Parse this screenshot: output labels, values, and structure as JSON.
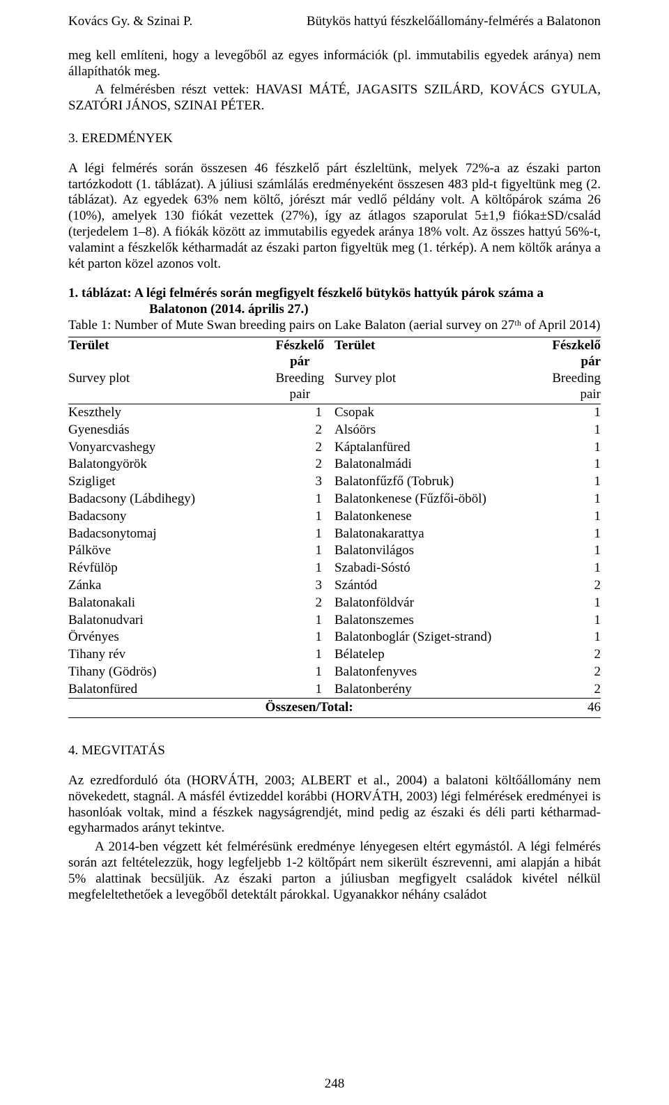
{
  "header": {
    "left": "Kovács Gy. & Szinai P.",
    "right": "Bütykös hattyú fészkelőállomány-felmérés a Balatonon"
  },
  "para1": "meg kell említeni, hogy a levegőből az egyes információk (pl. immutabilis egyedek aránya) nem állapíthatók meg.",
  "para2": "A felmérésben részt vettek: HAVASI MÁTÉ, JAGASITS SZILÁRD, KOVÁCS GYULA, SZATÓRI JÁNOS, SZINAI PÉTER.",
  "section3": "3. EREDMÉNYEK",
  "para3": "A légi felmérés során összesen 46 fészkelő párt észleltünk, melyek 72%-a az északi parton tartózkodott (1. táblázat). A júliusi számlálás eredményeként összesen 483 pld-t figyeltünk meg (2. táblázat). Az egyedek 63% nem költő, jórészt már vedlő példány volt. A költőpárok száma 26 (10%), amelyek 130 fiókát vezettek (27%), így az átlagos szaporulat 5±1,9 fióka±SD/család (terjedelem 1–8). A fiókák között az immutabilis egyedek aránya 18% volt. Az összes hattyú 56%-t, valamint a fészkelők kétharmadát az északi parton figyeltük meg (1. térkép). A nem költők aránya a két parton közel azonos volt.",
  "table1": {
    "caption_bold_a": "1. táblázat: A légi felmérés során megfigyelt fészkelő bütykös hattyúk párok száma a",
    "caption_bold_b": "Balatonon (2014. április 27.)",
    "caption_en": "Table 1: Number of Mute Swan breeding pairs on Lake Balaton (aerial survey on 27ᵗʰ of April 2014)",
    "head_left": "Terület",
    "head_pair": "Fészkelő pár",
    "head_sub_left": "Survey plot",
    "head_sub_pair": "Breeding pair",
    "rows_left": [
      [
        "Keszthely",
        "1"
      ],
      [
        "Gyenesdiás",
        "2"
      ],
      [
        "Vonyarcvashegy",
        "2"
      ],
      [
        "Balatongyörök",
        "2"
      ],
      [
        "Szigliget",
        "3"
      ],
      [
        "Badacsony (Lábdihegy)",
        "1"
      ],
      [
        "Badacsony",
        "1"
      ],
      [
        "Badacsonytomaj",
        "1"
      ],
      [
        "Pálköve",
        "1"
      ],
      [
        "Révfülöp",
        "1"
      ],
      [
        "Zánka",
        "3"
      ],
      [
        "Balatonakali",
        "2"
      ],
      [
        "Balatonudvari",
        "1"
      ],
      [
        "Örvényes",
        "1"
      ],
      [
        "Tihany rév",
        "1"
      ],
      [
        "Tihany (Gödrös)",
        "1"
      ],
      [
        "Balatonfüred",
        "1"
      ]
    ],
    "rows_right": [
      [
        "Csopak",
        "1"
      ],
      [
        "Alsóörs",
        "1"
      ],
      [
        "Káptalanfüred",
        "1"
      ],
      [
        "Balatonalmádi",
        "1"
      ],
      [
        "Balatonfűzfő (Tobruk)",
        "1"
      ],
      [
        "Balatonkenese (Fűzfői-öböl)",
        "1"
      ],
      [
        "Balatonkenese",
        "1"
      ],
      [
        "Balatonakarattya",
        "1"
      ],
      [
        "Balatonvilágos",
        "1"
      ],
      [
        "Szabadi-Sóstó",
        "1"
      ],
      [
        "Szántód",
        "2"
      ],
      [
        "Balatonföldvár",
        "1"
      ],
      [
        "Balatonszemes",
        "1"
      ],
      [
        "Balatonboglár (Sziget-strand)",
        "1"
      ],
      [
        "Bélatelep",
        "2"
      ],
      [
        "Balatonfenyves",
        "2"
      ],
      [
        "Balatonberény",
        "2"
      ]
    ],
    "total_label": "Összesen/Total:",
    "total_value": "46"
  },
  "section4": "4. MEGVITATÁS",
  "para4": "Az ezredforduló óta (HORVÁTH, 2003; ALBERT et al., 2004) a balatoni költőállomány nem növekedett, stagnál. A másfél évtizeddel korábbi (HORVÁTH, 2003) légi felmérések eredményei is hasonlóak voltak, mind a fészkek nagyságrendjét, mind pedig az északi és déli parti kétharmad-egyharmados arányt tekintve.",
  "para5": "A 2014-ben végzett két felmérésünk eredménye lényegesen eltért egymástól. A légi felmérés során azt feltételezzük, hogy legfeljebb 1-2 költőpárt nem sikerült észrevenni, ami alapján a hibát 5% alattinak becsüljük. Az északi parton a júliusban megfigyelt családok kivétel nélkül megfeleltethetőek a levegőből detektált párokkal. Ugyanakkor néhány családot",
  "pagenum": "248"
}
